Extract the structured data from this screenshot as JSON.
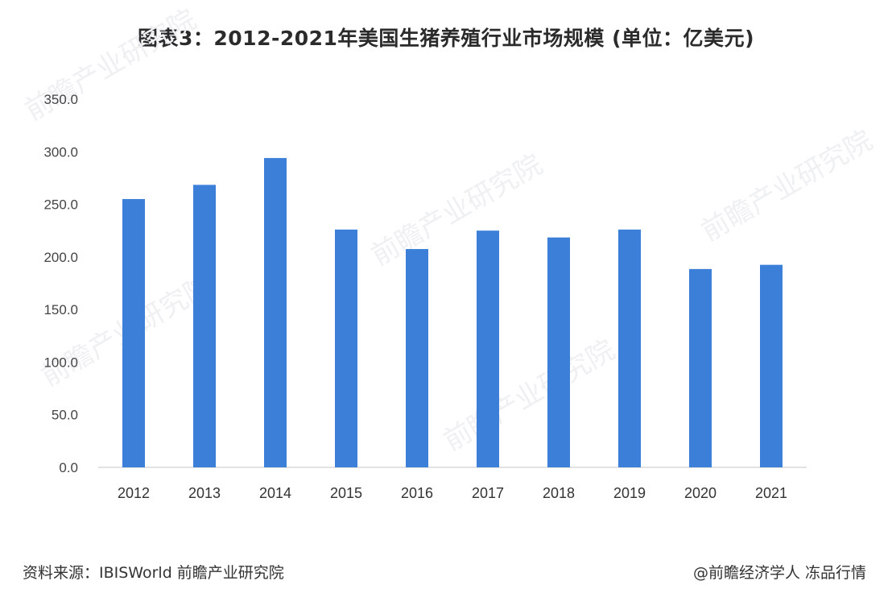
{
  "chart_data": {
    "type": "bar",
    "title": "图表3：2012-2021年美国生猪养殖行业市场规模 (单位：亿美元)",
    "categories": [
      "2012",
      "2013",
      "2014",
      "2015",
      "2016",
      "2017",
      "2018",
      "2019",
      "2020",
      "2021"
    ],
    "series": [
      {
        "values": [
          255.0,
          268.5,
          294.0,
          226.0,
          207.5,
          225.0,
          218.5,
          226.0,
          188.5,
          192.5
        ]
      }
    ],
    "ylim": [
      0,
      350
    ],
    "yticks": [
      "0.0",
      "50.0",
      "100.0",
      "150.0",
      "200.0",
      "250.0",
      "300.0",
      "350.0"
    ],
    "grid": false,
    "bar_color": "#3b7fd9",
    "xlabel": "",
    "ylabel": ""
  },
  "footer": {
    "source": "资料来源：IBISWorld 前瞻产业研究院",
    "credit": "@前瞻经济学人 冻品行情"
  },
  "watermark": "前瞻产业研究院"
}
